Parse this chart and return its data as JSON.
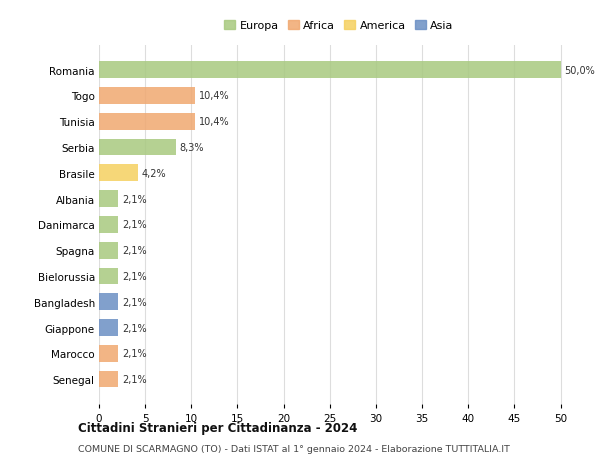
{
  "countries": [
    "Romania",
    "Togo",
    "Tunisia",
    "Serbia",
    "Brasile",
    "Albania",
    "Danimarca",
    "Spagna",
    "Bielorussia",
    "Bangladesh",
    "Giappone",
    "Marocco",
    "Senegal"
  ],
  "values": [
    50.0,
    10.4,
    10.4,
    8.3,
    4.2,
    2.1,
    2.1,
    2.1,
    2.1,
    2.1,
    2.1,
    2.1,
    2.1
  ],
  "labels": [
    "50,0%",
    "10,4%",
    "10,4%",
    "8,3%",
    "4,2%",
    "2,1%",
    "2,1%",
    "2,1%",
    "2,1%",
    "2,1%",
    "2,1%",
    "2,1%",
    "2,1%"
  ],
  "continents": [
    "Europa",
    "Africa",
    "Africa",
    "Europa",
    "America",
    "Europa",
    "Europa",
    "Europa",
    "Europa",
    "Asia",
    "Asia",
    "Africa",
    "Africa"
  ],
  "colors": {
    "Europa": "#a8c97f",
    "Africa": "#f0a870",
    "America": "#f5d060",
    "Asia": "#6b8fc4"
  },
  "legend_order": [
    "Europa",
    "Africa",
    "America",
    "Asia"
  ],
  "xlim": [
    0,
    52
  ],
  "xticks": [
    0,
    5,
    10,
    15,
    20,
    25,
    30,
    35,
    40,
    45,
    50
  ],
  "title_main": "Cittadini Stranieri per Cittadinanza - 2024",
  "title_sub": "COMUNE DI SCARMAGNO (TO) - Dati ISTAT al 1° gennaio 2024 - Elaborazione TUTTITALIA.IT",
  "background_color": "#ffffff",
  "grid_color": "#dddddd",
  "bar_height": 0.65,
  "figwidth": 6.0,
  "figheight": 4.6,
  "dpi": 100
}
